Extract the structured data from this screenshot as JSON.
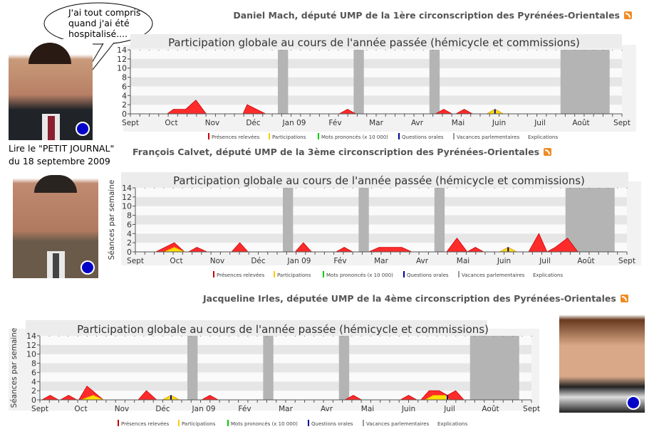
{
  "bubble": {
    "lines": [
      "J'ai tout compris",
      "quand j'ai été",
      "hospitalisé...."
    ]
  },
  "caption": {
    "line1": "Lire le \"PETIT JOURNAL\"",
    "line2": "du 18 septembre 2009"
  },
  "deputies": [
    {
      "name": "Daniel Mach, député UMP de la 1ère circonscription des Pyrénées-Orientales",
      "rss_icon": "rss-icon"
    },
    {
      "name": "François Calvet, député UMP de la 3ème circonscription des Pyrénées-Orientales",
      "rss_icon": "rss-icon"
    },
    {
      "name": "Jacqueline Irles, députée UMP de la 4ème circonscription des Pyrénées-Orientales",
      "rss_icon": "rss-icon"
    }
  ],
  "legend": [
    {
      "label": "Présences relevées",
      "color": "#cc0000"
    },
    {
      "label": "Participations",
      "color": "#ffcc00"
    },
    {
      "label": "Mots prononcés (x 10 000)",
      "color": "#00cc00"
    },
    {
      "label": "Questions orales",
      "color": "#000099"
    },
    {
      "label": "Vacances parlementaires",
      "color": "#999999"
    },
    {
      "label": "Explications",
      "color": ""
    }
  ],
  "chart_data": [
    {
      "type": "area",
      "title": "Participation globale au cours de l'année passée (hémicycle et commissions)",
      "ylabel": "",
      "ylim": [
        0,
        14
      ],
      "yticks": [
        "0",
        "2",
        "4",
        "6",
        "8",
        "10",
        "12",
        "14"
      ],
      "xticks": [
        "Sept",
        "Oct",
        "Nov",
        "Déc",
        "Jan 09",
        "Fév",
        "Mar",
        "Avr",
        "Mai",
        "Juin",
        "Juil",
        "Août",
        "Sept"
      ],
      "vacations": [
        [
          3.6,
          3.85
        ],
        [
          5.45,
          5.7
        ],
        [
          7.3,
          7.55
        ],
        [
          10.5,
          11.7
        ]
      ],
      "series": [
        {
          "name": "Présences relevées",
          "points": [
            [
              0.9,
              0
            ],
            [
              1.05,
              1
            ],
            [
              1.35,
              1
            ],
            [
              1.6,
              3
            ],
            [
              1.85,
              0
            ],
            [
              2.75,
              0
            ],
            [
              2.85,
              2
            ],
            [
              3.3,
              0
            ],
            [
              5.1,
              0
            ],
            [
              5.3,
              1
            ],
            [
              5.5,
              0
            ],
            [
              7.45,
              0
            ],
            [
              7.65,
              1
            ],
            [
              7.85,
              0
            ],
            [
              7.95,
              0
            ],
            [
              8.15,
              1
            ],
            [
              8.35,
              0
            ],
            [
              8.7,
              0
            ],
            [
              8.9,
              1
            ],
            [
              9.1,
              0
            ]
          ]
        },
        {
          "name": "Participations",
          "points": [
            [
              8.7,
              0
            ],
            [
              8.9,
              1
            ],
            [
              9.1,
              0
            ]
          ]
        }
      ],
      "questions": [
        [
          8.9,
          1
        ]
      ]
    },
    {
      "type": "area",
      "title": "Participation globale au cours de l'année passée (hémicycle et commissions)",
      "ylabel": "Séances par semaine",
      "ylim": [
        0,
        14
      ],
      "yticks": [
        "0",
        "2",
        "4",
        "6",
        "8",
        "10",
        "12",
        "14"
      ],
      "xticks": [
        "Sept",
        "Oct",
        "Nov",
        "Déc",
        "Jan 09",
        "Fév",
        "Mar",
        "Avr",
        "Mai",
        "Juin",
        "Juil",
        "Août",
        "Sept"
      ],
      "vacations": [
        [
          3.6,
          3.85
        ],
        [
          5.45,
          5.7
        ],
        [
          7.3,
          7.55
        ],
        [
          10.5,
          11.7
        ]
      ],
      "series": [
        {
          "name": "Présences relevées",
          "points": [
            [
              0.5,
              0
            ],
            [
              0.95,
              2
            ],
            [
              1.2,
              0
            ],
            [
              1.3,
              0
            ],
            [
              1.5,
              1
            ],
            [
              1.75,
              0
            ],
            [
              2.35,
              0
            ],
            [
              2.55,
              2
            ],
            [
              2.75,
              0
            ],
            [
              3.9,
              0
            ],
            [
              4.1,
              2
            ],
            [
              4.3,
              0
            ],
            [
              4.9,
              0
            ],
            [
              5.1,
              1
            ],
            [
              5.3,
              0
            ],
            [
              5.7,
              0
            ],
            [
              5.95,
              1
            ],
            [
              6.5,
              1
            ],
            [
              6.75,
              0
            ],
            [
              7.6,
              0
            ],
            [
              7.85,
              3
            ],
            [
              8.1,
              0
            ],
            [
              8.1,
              0
            ],
            [
              8.3,
              1
            ],
            [
              8.5,
              0
            ],
            [
              8.9,
              0
            ],
            [
              9.1,
              1
            ],
            [
              9.3,
              0
            ],
            [
              9.6,
              0
            ],
            [
              9.85,
              4
            ],
            [
              10.05,
              0
            ],
            [
              10.25,
              1
            ],
            [
              10.55,
              3
            ],
            [
              10.8,
              0
            ]
          ]
        },
        {
          "name": "Participations",
          "points": [
            [
              0.7,
              0
            ],
            [
              0.95,
              1
            ],
            [
              1.2,
              0
            ],
            [
              8.9,
              0
            ],
            [
              9.1,
              1
            ],
            [
              9.3,
              0
            ]
          ]
        }
      ],
      "questions": [
        [
          9.1,
          1
        ]
      ]
    },
    {
      "type": "area",
      "title": "Participation globale au cours de l'année passée (hémicycle et commissions)",
      "ylabel": "Séances par semaine",
      "ylim": [
        0,
        14
      ],
      "yticks": [
        "0",
        "2",
        "4",
        "6",
        "8",
        "10",
        "12",
        "14"
      ],
      "xticks": [
        "Sept",
        "Oct",
        "Nov",
        "Déc",
        "Jan 09",
        "Fév",
        "Mar",
        "Avr",
        "Mai",
        "Juin",
        "Juil",
        "Août",
        "Sept"
      ],
      "vacations": [
        [
          3.6,
          3.85
        ],
        [
          5.45,
          5.7
        ],
        [
          7.3,
          7.55
        ],
        [
          10.5,
          11.7
        ]
      ],
      "series": [
        {
          "name": "Présences relevées",
          "points": [
            [
              0.05,
              0
            ],
            [
              0.25,
              1
            ],
            [
              0.45,
              0
            ],
            [
              0.5,
              0
            ],
            [
              0.7,
              1
            ],
            [
              0.9,
              0
            ],
            [
              0.95,
              0
            ],
            [
              1.15,
              3
            ],
            [
              1.55,
              0
            ],
            [
              2.4,
              0
            ],
            [
              2.6,
              2
            ],
            [
              2.85,
              0
            ],
            [
              3.0,
              0
            ],
            [
              3.2,
              1
            ],
            [
              3.4,
              0
            ],
            [
              3.95,
              0
            ],
            [
              4.15,
              1
            ],
            [
              4.35,
              0
            ],
            [
              7.45,
              0
            ],
            [
              7.65,
              1
            ],
            [
              7.85,
              0
            ],
            [
              8.8,
              0
            ],
            [
              9.0,
              1
            ],
            [
              9.2,
              0
            ],
            [
              9.3,
              0
            ],
            [
              9.5,
              2
            ],
            [
              9.75,
              2
            ],
            [
              9.95,
              1
            ],
            [
              10.15,
              2
            ],
            [
              10.35,
              0
            ]
          ]
        },
        {
          "name": "Participations",
          "points": [
            [
              1.0,
              0
            ],
            [
              1.3,
              1
            ],
            [
              1.55,
              0
            ],
            [
              3.0,
              0
            ],
            [
              3.2,
              1
            ],
            [
              3.4,
              0
            ],
            [
              9.4,
              0
            ],
            [
              9.6,
              1
            ],
            [
              9.9,
              1
            ],
            [
              10.0,
              0
            ]
          ]
        }
      ],
      "questions": [
        [
          3.2,
          1
        ],
        [
          9.95,
          1
        ]
      ]
    }
  ]
}
